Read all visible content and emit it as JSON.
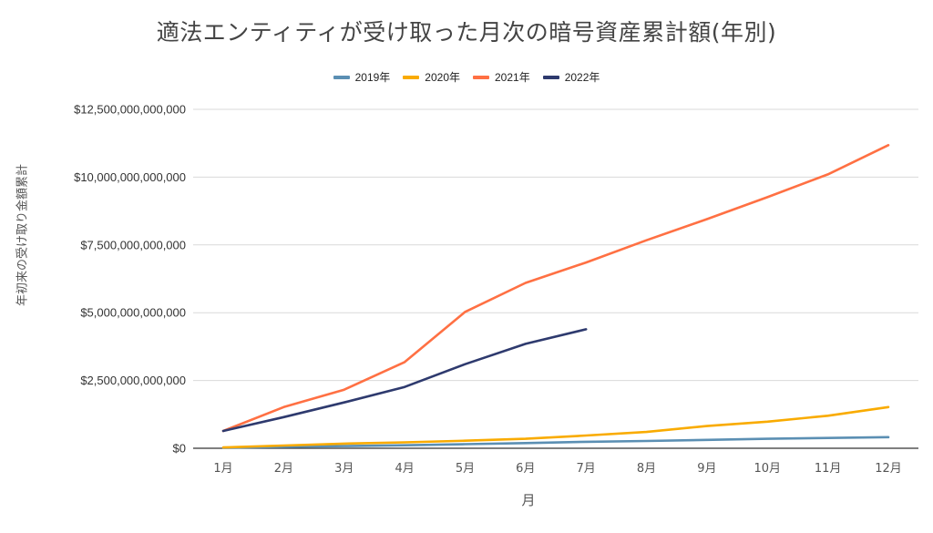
{
  "chart_data": {
    "type": "line",
    "title": "適法エンティティが受け取った月次の暗号資産累計額(年別)",
    "xlabel": "月",
    "ylabel": "年初来の受け取り金額累計",
    "legend_position": "top",
    "grid": true,
    "categories": [
      "1月",
      "2月",
      "3月",
      "4月",
      "5月",
      "6月",
      "7月",
      "8月",
      "9月",
      "10月",
      "11月",
      "12月"
    ],
    "ylim": [
      0,
      12500000000000
    ],
    "y_ticks": [
      {
        "value": 0,
        "label": "$0"
      },
      {
        "value": 2500000000000,
        "label": "$2,500,000,000,000"
      },
      {
        "value": 5000000000000,
        "label": "$5,000,000,000,000"
      },
      {
        "value": 7500000000000,
        "label": "$7,500,000,000,000"
      },
      {
        "value": 10000000000000,
        "label": "$10,000,000,000,000"
      },
      {
        "value": 12500000000000,
        "label": "$12,500,000,000,000"
      }
    ],
    "series": [
      {
        "name": "2019年",
        "color": "#5b8fb3",
        "values": [
          20000000000,
          50000000000,
          80000000000,
          110000000000,
          150000000000,
          190000000000,
          240000000000,
          270000000000,
          310000000000,
          350000000000,
          380000000000,
          410000000000
        ]
      },
      {
        "name": "2020年",
        "color": "#f9ab00",
        "values": [
          30000000000,
          100000000000,
          170000000000,
          220000000000,
          280000000000,
          350000000000,
          470000000000,
          600000000000,
          820000000000,
          980000000000,
          1200000000000,
          1520000000000
        ]
      },
      {
        "name": "2021年",
        "color": "#ff7043",
        "values": [
          640000000000,
          1520000000000,
          2160000000000,
          3180000000000,
          5030000000000,
          6100000000000,
          6850000000000,
          7670000000000,
          8450000000000,
          9260000000000,
          10100000000000,
          11180000000000
        ]
      },
      {
        "name": "2022年",
        "color": "#2e3a6e",
        "values": [
          640000000000,
          1150000000000,
          1690000000000,
          2260000000000,
          3100000000000,
          3850000000000,
          4390000000000,
          null,
          null,
          null,
          null,
          null
        ]
      }
    ]
  }
}
